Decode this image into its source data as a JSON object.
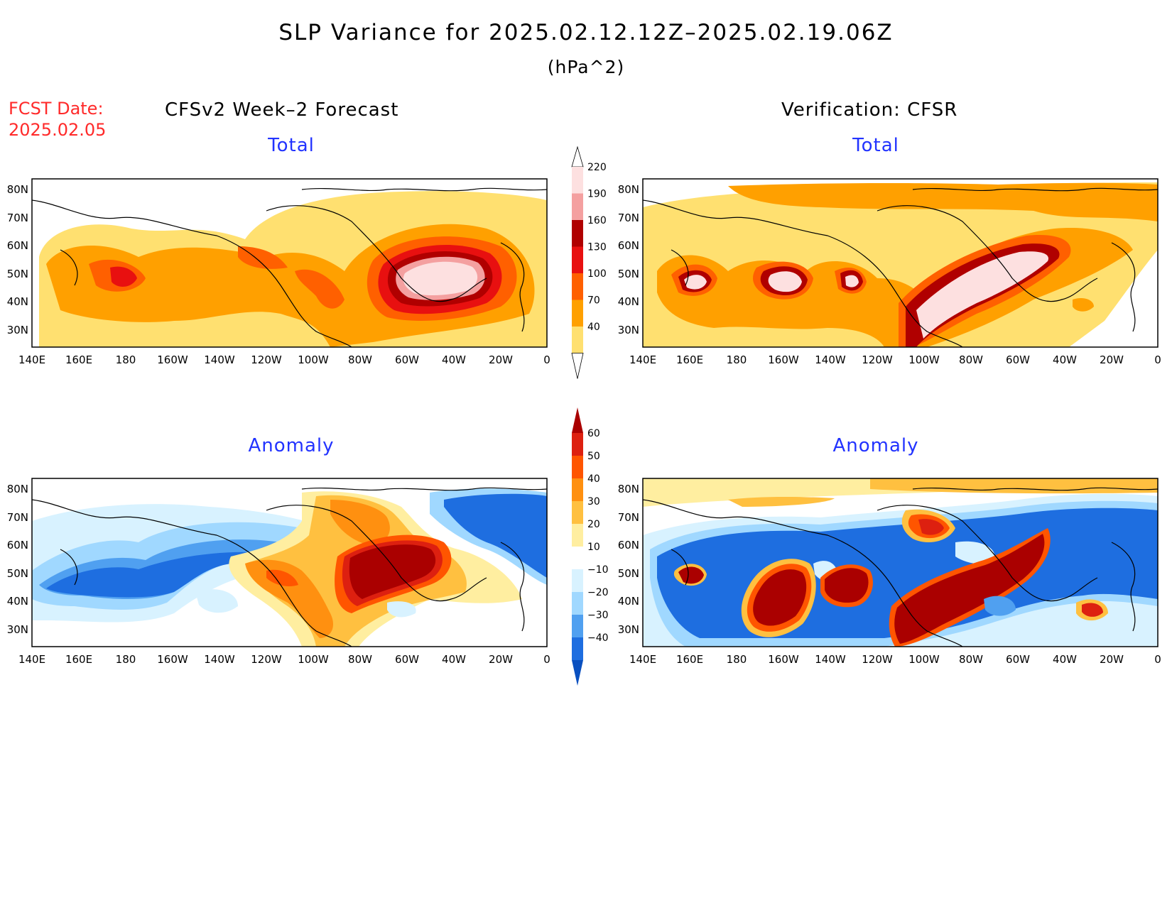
{
  "header": {
    "title": "SLP Variance for 2025.02.12.12Z–2025.02.19.06Z",
    "units": "(hPa^2)",
    "fcst_date_label": "FCST Date:",
    "fcst_date_value": "2025.02.05"
  },
  "columns": {
    "left": "CFSv2 Week–2 Forecast",
    "right": "Verification: CFSR"
  },
  "panels": {
    "top_left_title": "Total",
    "top_right_title": "Total",
    "bottom_left_title": "Anomaly",
    "bottom_right_title": "Anomaly"
  },
  "axes": {
    "lon_ticks": [
      "140E",
      "160E",
      "180",
      "160W",
      "140W",
      "120W",
      "100W",
      "80W",
      "60W",
      "40W",
      "20W",
      "0"
    ],
    "lat_ticks": [
      "80N",
      "70N",
      "60N",
      "50N",
      "40N",
      "30N"
    ]
  },
  "colorbars": {
    "total": {
      "levels": [
        "220",
        "190",
        "160",
        "130",
        "100",
        "70",
        "40"
      ],
      "colors": [
        "#fde0e0",
        "#f4a0a0",
        "#b00000",
        "#e81010",
        "#ff6000",
        "#ffa000",
        "#ffe070"
      ]
    },
    "anomaly": {
      "levels": [
        "60",
        "50",
        "40",
        "30",
        "20",
        "10",
        "−10",
        "−20",
        "−30",
        "−40"
      ],
      "colors": [
        "#aa0000",
        "#dd2010",
        "#ff5500",
        "#ff9010",
        "#ffc040",
        "#ffeea0",
        "#ffffff",
        "#d8f2ff",
        "#a0d8ff",
        "#50a0f0",
        "#1e6ee0",
        "#0a50c0"
      ]
    }
  }
}
